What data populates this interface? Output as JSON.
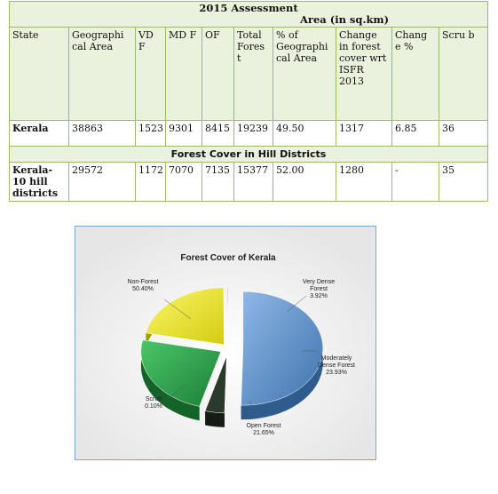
{
  "table": {
    "title": "2015 Assessment",
    "unit": "Area (in sq.km)",
    "headers": [
      "State",
      "Geographical Area",
      "VDF",
      "MDF",
      "OF",
      "Total Forest",
      "% of Geographical Area",
      "Change in forest cover wrt ISFR 2013",
      "Change %",
      "Scrub"
    ],
    "header_display": [
      "State",
      "Geographi cal Area",
      "VD F",
      "MD F",
      "OF",
      "Total Fores t",
      "% of Geographi cal Area",
      "Change in forest cover wrt ISFR 2013",
      "Chang e %",
      "Scru b"
    ],
    "rows": [
      [
        "Kerala",
        "38863",
        "1523",
        "9301",
        "8415",
        "19239",
        "49.50",
        "1317",
        "6.85",
        "36"
      ]
    ],
    "section_title": "Forest Cover in Hill Districts",
    "section_rows": [
      [
        "Kerala-10 hill districts",
        "29572",
        "1172",
        "7070",
        "7135",
        "15377",
        "52.00",
        "1280",
        "-",
        "35"
      ]
    ]
  },
  "chart_data": {
    "type": "pie",
    "title": "Forest Cover of Kerala",
    "slices": [
      {
        "label": "Non-Forest",
        "value": 50.4,
        "display": "50.40%",
        "color": "#5a8fc6"
      },
      {
        "label": "Very Dense Forest",
        "value": 3.92,
        "display": "3.92%",
        "color": "#2b3a2a"
      },
      {
        "label": "Moderately Dense Forest",
        "value": 23.93,
        "display": "23.93%",
        "color": "#2aa34a"
      },
      {
        "label": "Open Forest",
        "value": 21.65,
        "display": "21.65%",
        "color": "#f0ea1a"
      },
      {
        "label": "Scrub",
        "value": 0.1,
        "display": "0.10%",
        "color": "#a0281e"
      }
    ],
    "legend": "none"
  }
}
